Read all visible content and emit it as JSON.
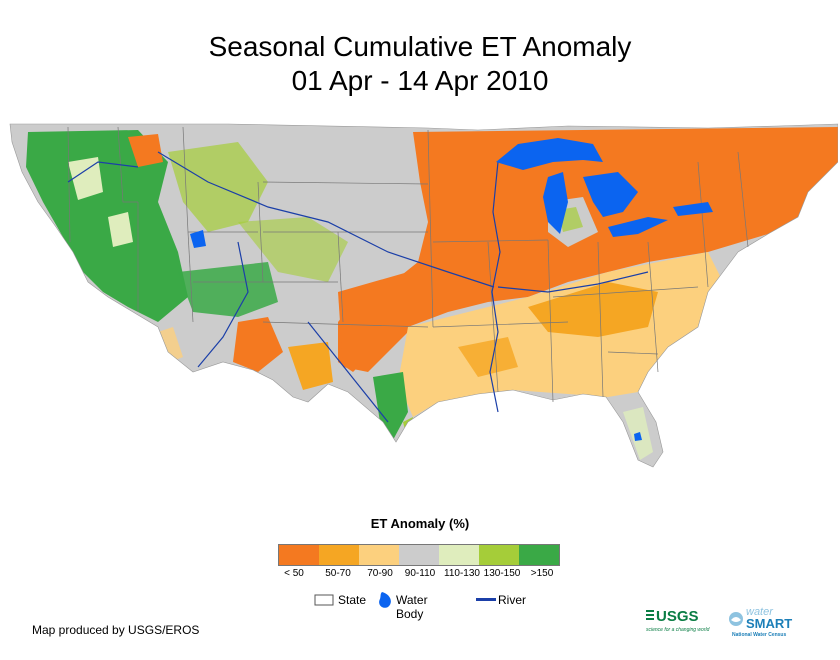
{
  "title": {
    "line1": "Seasonal Cumulative ET Anomaly",
    "line2": "01 Apr - 14 Apr 2010"
  },
  "legend": {
    "title": "ET Anomaly (%)",
    "classes": [
      {
        "label": "< 50",
        "color": "#f47920"
      },
      {
        "label": "50-70",
        "color": "#f5a623"
      },
      {
        "label": "70-90",
        "color": "#fcd07e"
      },
      {
        "label": "90-110",
        "color": "#cccccc"
      },
      {
        "label": "110-130",
        "color": "#dfedbd"
      },
      {
        "label": "130-150",
        "color": "#a5cd39"
      },
      {
        "label": ">150",
        "color": "#3aa946"
      }
    ]
  },
  "symbols": {
    "state": "State",
    "water_body": "Water Body",
    "river": "River",
    "water_color": "#0b64f0",
    "river_color": "#1b3fa8"
  },
  "footer": {
    "credit": "Map produced by USGS/EROS",
    "usgs_logo": "USGS",
    "usgs_tagline": "science for a changing world",
    "watersmart_logo_top": "water",
    "watersmart_logo_bottom": "SMART",
    "watersmart_tagline": "National Water Census"
  }
}
